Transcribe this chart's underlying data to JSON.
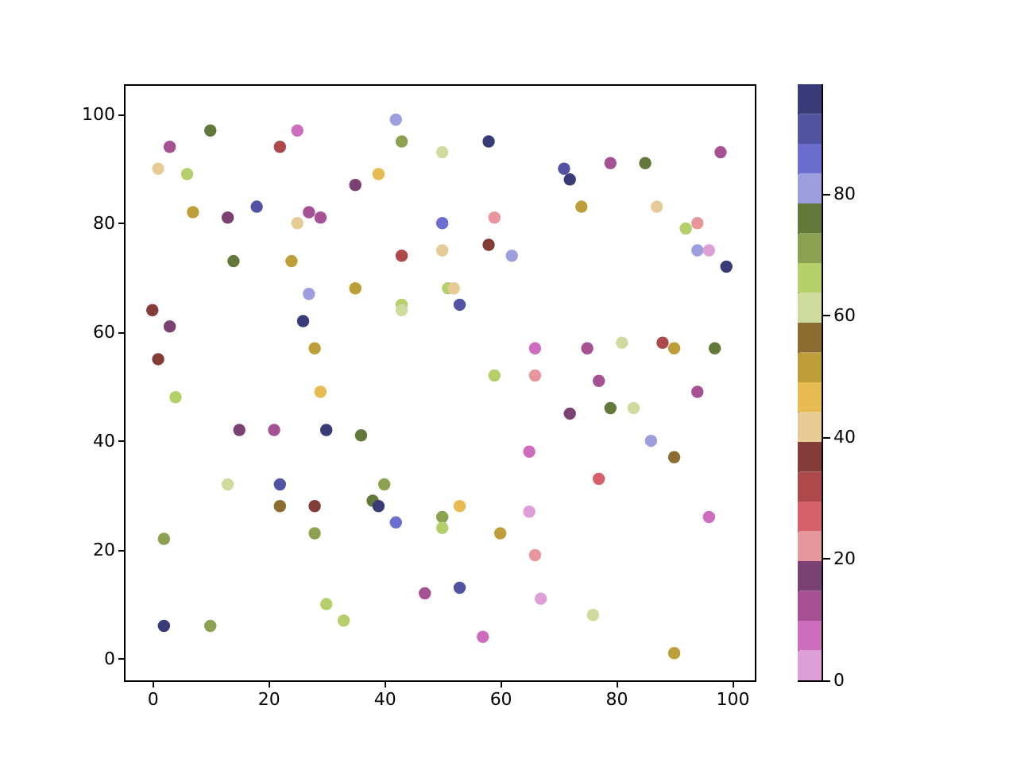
{
  "chart_data": {
    "type": "scatter",
    "marker": "circle",
    "x": [
      1,
      3,
      6,
      10,
      7,
      13,
      18,
      14,
      25,
      22,
      27,
      29,
      25,
      24,
      35,
      39,
      42,
      43,
      50,
      43,
      35,
      43,
      43,
      27,
      26,
      28,
      29,
      0,
      3,
      1,
      4,
      15,
      21,
      30,
      36,
      13,
      22,
      22,
      28,
      38,
      39,
      40,
      42,
      2,
      28,
      2,
      10,
      30,
      33,
      50,
      50,
      47,
      53,
      53,
      60,
      57,
      65,
      66,
      67,
      76,
      65,
      77,
      90,
      96,
      86,
      90,
      72,
      77,
      79,
      83,
      66,
      66,
      59,
      75,
      81,
      88,
      90,
      97,
      94,
      50,
      53,
      50,
      51,
      52,
      58,
      59,
      58,
      62,
      71,
      72,
      74,
      79,
      85,
      87,
      92,
      94,
      94,
      96,
      98,
      99
    ],
    "values": [
      90,
      94,
      89,
      97,
      82,
      81,
      83,
      73,
      97,
      94,
      82,
      81,
      80,
      73,
      87,
      89,
      99,
      95,
      93,
      74,
      68,
      65,
      64,
      67,
      62,
      57,
      49,
      64,
      61,
      55,
      48,
      42,
      42,
      42,
      41,
      32,
      32,
      28,
      28,
      29,
      28,
      32,
      25,
      22,
      23,
      6,
      6,
      10,
      7,
      26,
      24,
      12,
      13,
      28,
      23,
      4,
      27,
      19,
      11,
      8,
      38,
      33,
      1,
      26,
      40,
      37,
      45,
      51,
      46,
      46,
      57,
      52,
      52,
      57,
      58,
      58,
      57,
      57,
      49,
      80,
      65,
      75,
      68,
      68,
      95,
      81,
      76,
      74,
      90,
      88,
      83,
      91,
      91,
      83,
      79,
      80,
      75,
      75,
      93,
      72
    ],
    "cvalues": [
      42,
      12,
      66,
      76,
      51,
      17,
      90,
      76,
      7,
      32,
      12,
      12,
      42,
      51,
      17,
      46,
      81,
      71,
      61,
      32,
      51,
      66,
      61,
      81,
      96,
      51,
      46,
      37,
      17,
      37,
      66,
      17,
      12,
      96,
      76,
      61,
      90,
      56,
      37,
      76,
      96,
      71,
      86,
      71,
      71,
      96,
      71,
      66,
      66,
      71,
      66,
      12,
      90,
      46,
      51,
      7,
      2,
      22,
      2,
      61,
      7,
      27,
      51,
      7,
      81,
      56,
      17,
      12,
      76,
      61,
      7,
      22,
      66,
      12,
      61,
      32,
      51,
      76,
      12,
      86,
      90,
      42,
      66,
      42,
      96,
      22,
      37,
      81,
      90,
      96,
      51,
      12,
      76,
      42,
      66,
      22,
      81,
      2,
      12,
      96
    ],
    "xlim": [
      -4.9,
      103.9
    ],
    "ylim": [
      -4,
      105.5
    ],
    "xticks": [
      0,
      20,
      40,
      60,
      80,
      100
    ],
    "yticks": [
      0,
      20,
      40,
      60,
      80,
      100
    ],
    "clim": [
      0,
      98
    ],
    "cticks": [
      0,
      20,
      40,
      60,
      80
    ],
    "grid": false
  }
}
